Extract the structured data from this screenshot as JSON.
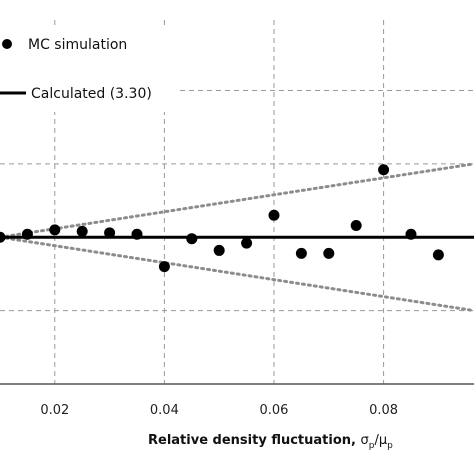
{
  "chart_data": {
    "type": "scatter",
    "xlabel_main": "Relative density fluctuation, ",
    "xlabel_math": "σ",
    "xlabel_sub1": "p",
    "xlabel_slash": "/μ",
    "xlabel_sub2": "p",
    "xlim": [
      0.01,
      0.0965
    ],
    "ylim": [
      -1.0,
      1.48
    ],
    "x_ticks": [
      0.02,
      0.04,
      0.06,
      0.08
    ],
    "x_tick_labels": [
      "0.02",
      "0.04",
      "0.06",
      "0.08"
    ],
    "grid": true,
    "series": [
      {
        "name": "MC simulation",
        "kind": "points",
        "x": [
          0.01,
          0.015,
          0.02,
          0.025,
          0.03,
          0.035,
          0.04,
          0.045,
          0.05,
          0.055,
          0.06,
          0.065,
          0.07,
          0.075,
          0.08,
          0.085,
          0.09
        ],
        "y": [
          0.0,
          0.02,
          0.05,
          0.04,
          0.03,
          0.02,
          -0.2,
          -0.01,
          -0.09,
          -0.04,
          0.15,
          -0.11,
          -0.11,
          0.08,
          0.46,
          0.02,
          -0.12
        ]
      },
      {
        "name": "Calculated (3.30)",
        "kind": "line",
        "x": [
          0.01,
          0.0965
        ],
        "y": [
          0.0,
          0.0
        ]
      },
      {
        "kind": "dotted",
        "x": [
          0.01,
          0.0965
        ],
        "y": [
          0.0,
          0.5
        ]
      },
      {
        "kind": "dotted",
        "x": [
          0.01,
          0.0965
        ],
        "y": [
          0.0,
          -0.5
        ]
      }
    ],
    "legend": {
      "position": "top-left",
      "items": [
        "MC simulation",
        "Calculated (3.30)"
      ]
    }
  }
}
